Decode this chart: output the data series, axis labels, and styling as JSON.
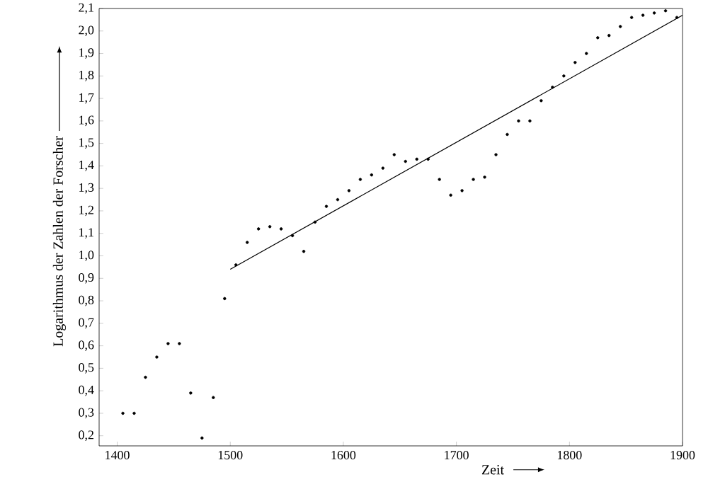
{
  "chart_data": {
    "type": "scatter",
    "xlabel": "Zeit",
    "ylabel": "Logarithmus der Zahlen der Forscher",
    "series": [
      {
        "color": "#000000",
        "marker": "circle",
        "x": [
          1405,
          1415,
          1425,
          1435,
          1445,
          1455,
          1465,
          1475,
          1485,
          1495,
          1505,
          1515,
          1525,
          1535,
          1545,
          1555,
          1565,
          1575,
          1585,
          1595,
          1605,
          1615,
          1625,
          1635,
          1645,
          1655,
          1665,
          1675,
          1685,
          1695,
          1705,
          1715,
          1725,
          1735,
          1745,
          1755,
          1765,
          1775,
          1785,
          1795,
          1805,
          1815,
          1825,
          1835,
          1845,
          1855,
          1865,
          1875,
          1885,
          1895
        ],
        "values": [
          0.3,
          0.3,
          0.46,
          0.55,
          0.61,
          0.61,
          0.39,
          0.19,
          0.37,
          0.81,
          0.96,
          1.06,
          1.12,
          1.13,
          1.12,
          1.09,
          1.02,
          1.15,
          1.22,
          1.25,
          1.29,
          1.34,
          1.36,
          1.39,
          1.45,
          1.42,
          1.43,
          1.43,
          1.34,
          1.27,
          1.29,
          1.34,
          1.35,
          1.45,
          1.54,
          1.6,
          1.6,
          1.69,
          1.75,
          1.8,
          1.86,
          1.9,
          1.97,
          1.98,
          2.02,
          2.06,
          2.07,
          2.08,
          2.09,
          2.06
        ]
      },
      {
        "type": "line",
        "color": "#000000",
        "marker": "none",
        "line_style": "solid",
        "x": [
          1500,
          1900
        ],
        "values": [
          0.94,
          2.07
        ]
      }
    ],
    "xlim": [
      1384,
      1900
    ],
    "ylim": [
      0.155,
      2.1
    ],
    "xticks": [
      1400,
      1500,
      1600,
      1700,
      1800,
      1900
    ],
    "yticks": [
      {
        "value": 0.2,
        "label": "0,2"
      },
      {
        "value": 0.3,
        "label": "0,3"
      },
      {
        "value": 0.4,
        "label": "0,4"
      },
      {
        "value": 0.5,
        "label": "0,5"
      },
      {
        "value": 0.6,
        "label": "0,6"
      },
      {
        "value": 0.7,
        "label": "0,7"
      },
      {
        "value": 0.8,
        "label": "0,8"
      },
      {
        "value": 0.9,
        "label": "0,9"
      },
      {
        "value": 1.0,
        "label": "1,0"
      },
      {
        "value": 1.1,
        "label": "1,1"
      },
      {
        "value": 1.2,
        "label": "1,2"
      },
      {
        "value": 1.3,
        "label": "1,3"
      },
      {
        "value": 1.4,
        "label": "1,4"
      },
      {
        "value": 1.5,
        "label": "1,5"
      },
      {
        "value": 1.6,
        "label": "1,6"
      },
      {
        "value": 1.7,
        "label": "1,7"
      },
      {
        "value": 1.8,
        "label": "1,8"
      },
      {
        "value": 1.9,
        "label": "1,9"
      },
      {
        "value": 2.0,
        "label": "2,0"
      },
      {
        "value": 2.1,
        "label": "2,1"
      }
    ],
    "grid": false
  }
}
